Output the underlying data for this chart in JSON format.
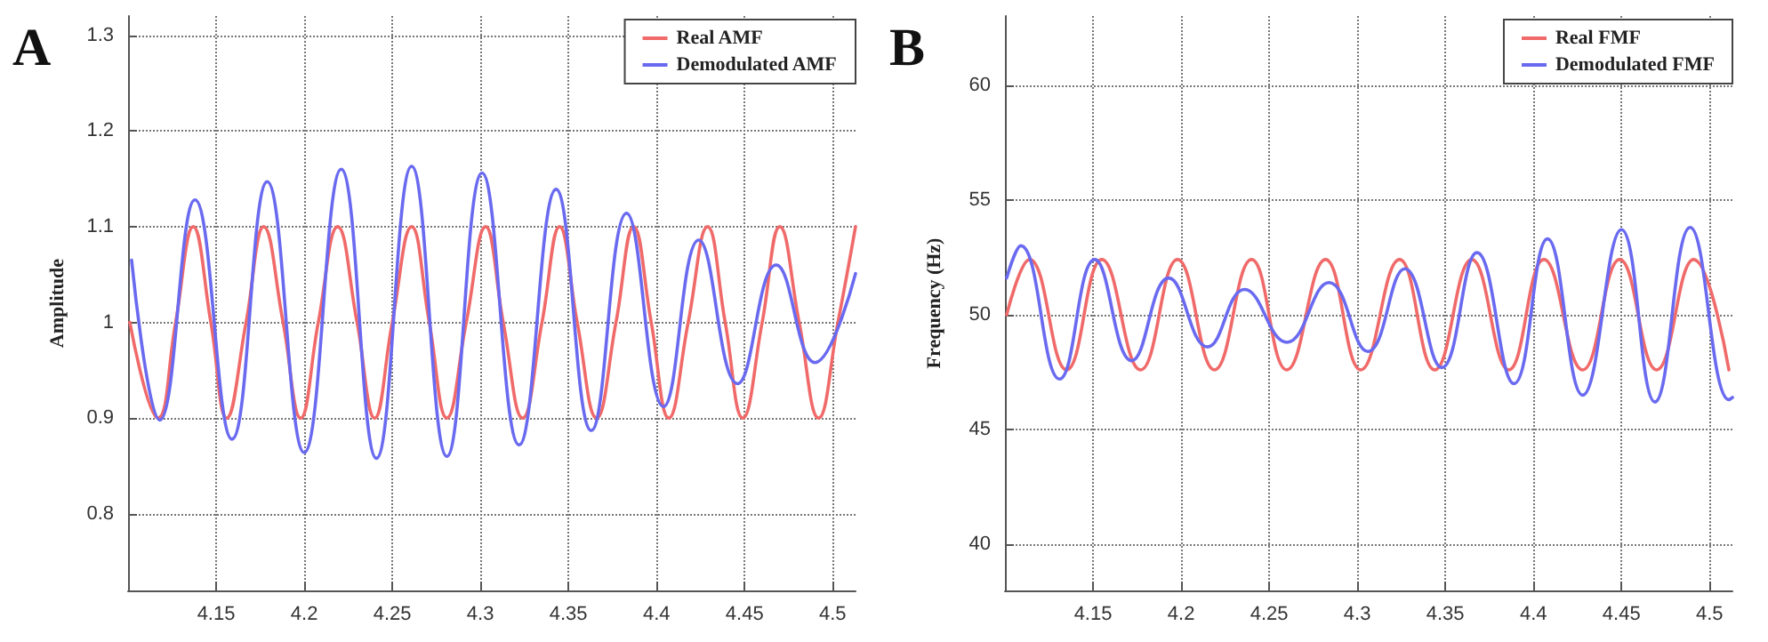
{
  "chart_data": [
    {
      "type": "line",
      "title": "A",
      "ylabel": "Amplitude",
      "xlim": [
        4.1,
        4.513
      ],
      "ylim": [
        0.72,
        1.32
      ],
      "xticks": [
        4.15,
        4.2,
        4.25,
        4.3,
        4.35,
        4.4,
        4.45,
        4.5
      ],
      "yticks": [
        0.8,
        0.9,
        1,
        1.1,
        1.2,
        1.3
      ],
      "grid": true,
      "legend": "top right",
      "line_style": "solid",
      "series": [
        {
          "name": "Real AMF",
          "color": "#f06a6a",
          "x": [
            4.101,
            4.117,
            4.127,
            4.137,
            4.147,
            4.156,
            4.167,
            4.177,
            4.188,
            4.198,
            4.208,
            4.219,
            4.23,
            4.24,
            4.25,
            4.261,
            4.271,
            4.281,
            4.292,
            4.303,
            4.313,
            4.324,
            4.335,
            4.345,
            4.355,
            4.366,
            4.377,
            4.387,
            4.397,
            4.407,
            4.418,
            4.429,
            4.439,
            4.449,
            4.46,
            4.47,
            4.481,
            4.492,
            4.503,
            4.513
          ],
          "values": [
            1.0,
            0.9,
            1.0,
            1.1,
            1.0,
            0.9,
            1.0,
            1.1,
            1.0,
            0.9,
            1.0,
            1.1,
            1.0,
            0.9,
            1.0,
            1.1,
            1.0,
            0.9,
            1.0,
            1.1,
            1.0,
            0.9,
            1.0,
            1.1,
            1.0,
            0.9,
            1.0,
            1.1,
            1.0,
            0.9,
            1.0,
            1.1,
            1.0,
            0.9,
            1.0,
            1.1,
            1.0,
            0.9,
            1.0,
            1.1
          ]
        },
        {
          "name": "Demodulated AMF",
          "color": "#6a6af0",
          "x": [
            4.102,
            4.118,
            4.138,
            4.159,
            4.179,
            4.2,
            4.221,
            4.241,
            4.261,
            4.281,
            4.301,
            4.322,
            4.343,
            4.363,
            4.383,
            4.404,
            4.424,
            4.446,
            4.468,
            4.49,
            4.513
          ],
          "values": [
            1.065,
            0.898,
            1.128,
            0.878,
            1.147,
            0.864,
            1.16,
            0.858,
            1.163,
            0.86,
            1.156,
            0.872,
            1.139,
            0.887,
            1.114,
            0.912,
            1.086,
            0.936,
            1.06,
            0.958,
            1.051
          ]
        }
      ]
    },
    {
      "type": "line",
      "title": "B",
      "ylabel": "Frequency (Hz)",
      "xlim": [
        4.1,
        4.513
      ],
      "ylim": [
        38,
        63
      ],
      "xticks": [
        4.15,
        4.2,
        4.25,
        4.3,
        4.35,
        4.4,
        4.45,
        4.5
      ],
      "yticks": [
        40,
        45,
        50,
        55,
        60
      ],
      "grid": true,
      "legend": "top right",
      "line_style": "solid",
      "series": [
        {
          "name": "Real FMF",
          "color": "#f06a6a",
          "x": [
            4.101,
            4.114,
            4.135,
            4.155,
            4.177,
            4.198,
            4.219,
            4.24,
            4.26,
            4.282,
            4.302,
            4.324,
            4.344,
            4.365,
            4.386,
            4.406,
            4.428,
            4.449,
            4.47,
            4.491,
            4.511
          ],
          "values": [
            50.0,
            52.4,
            47.6,
            52.4,
            47.6,
            52.4,
            47.6,
            52.4,
            47.6,
            52.4,
            47.6,
            52.4,
            47.6,
            52.4,
            47.6,
            52.4,
            47.6,
            52.4,
            47.6,
            52.4,
            47.6
          ]
        },
        {
          "name": "Demodulated FMF",
          "color": "#6a6af0",
          "x": [
            4.101,
            4.109,
            4.131,
            4.151,
            4.172,
            4.193,
            4.215,
            4.236,
            4.26,
            4.284,
            4.306,
            4.327,
            4.348,
            4.368,
            4.389,
            4.408,
            4.428,
            4.45,
            4.469,
            4.489,
            4.511,
            4.513
          ],
          "values": [
            51.6,
            53.0,
            47.2,
            52.4,
            48.0,
            51.6,
            48.6,
            51.1,
            48.8,
            51.4,
            48.4,
            52.0,
            47.7,
            52.7,
            47.0,
            53.3,
            46.5,
            53.7,
            46.2,
            53.8,
            46.3,
            46.4
          ]
        }
      ]
    }
  ]
}
